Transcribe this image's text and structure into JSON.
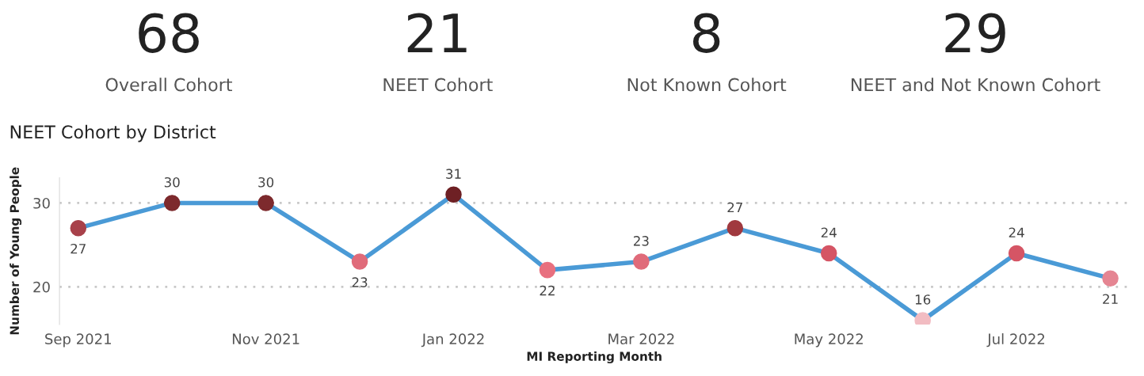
{
  "chart_data": [
    {
      "type": "other",
      "categories": [
        "Overall Cohort",
        "NEET Cohort",
        "Not Known Cohort",
        "NEET and Not Known Cohort"
      ],
      "values": [
        68,
        21,
        8,
        29
      ],
      "data_labels": true
    },
    {
      "type": "line",
      "title": "NEET Cohort by District",
      "xlabel": "MI Reporting Month",
      "ylabel": "Number of Young People",
      "categories": [
        "Sep 2021",
        null,
        "Nov 2021",
        null,
        "Jan 2022",
        null,
        "Mar 2022",
        null,
        "May 2022",
        null,
        "Jul 2022",
        null
      ],
      "series": [
        {
          "color": "#4a9ad6",
          "values": [
            27,
            30,
            30,
            23,
            31,
            22,
            23,
            27,
            24,
            16,
            24,
            21
          ],
          "colors": [
            "#a8414a",
            "#7d2a2d",
            "#7d2a2d",
            "#e06b7a",
            "#6e2024",
            "#e8707f",
            "#e06b7a",
            "#a0393f",
            "#d55565",
            "#f2bcc2",
            "#d55565",
            "#e58592"
          ]
        }
      ],
      "ylim": [
        15.5,
        33
      ],
      "yticks": [
        20,
        30
      ],
      "grid": "y",
      "marker": "circle",
      "line_style": "solid",
      "data_labels": true
    }
  ]
}
